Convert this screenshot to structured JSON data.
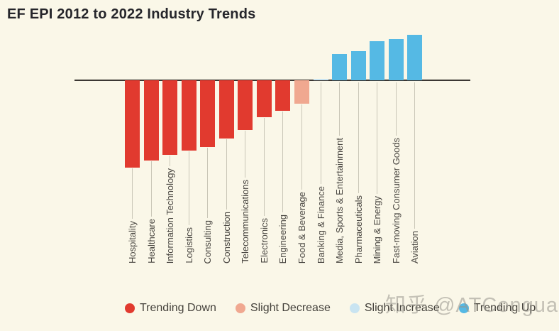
{
  "page": {
    "background_color": "#FAF7E8"
  },
  "chart_data": {
    "type": "bar",
    "title": "EF EPI 2012 to 2022 Industry Trends",
    "xlabel": "",
    "ylabel": "",
    "axis": {
      "numeric_axis_shown": false,
      "baseline": 0,
      "note": "No value labels or gridlines shown in source; values below are relative bar lengths estimated in pixels (negative = below baseline)."
    },
    "grid": false,
    "legend_position": "bottom",
    "categories": [
      "Hospitality",
      "Healthcare",
      "Information Technology",
      "Logistics",
      "Consulting",
      "Construction",
      "Telecommunications",
      "Electronics",
      "Engineering",
      "Food & Beverage",
      "Banking & Finance",
      "Media, Sports & Entertainment",
      "Pharmaceuticals",
      "Mining & Energy",
      "Fast-moving Consumer Goods",
      "Aviation"
    ],
    "values": [
      -123,
      -113,
      -105,
      -99,
      -94,
      -82,
      -70,
      -52,
      -43,
      -33,
      2,
      37,
      41,
      55,
      58,
      64
    ],
    "trends": [
      "trending_down",
      "trending_down",
      "trending_down",
      "trending_down",
      "trending_down",
      "trending_down",
      "trending_down",
      "trending_down",
      "trending_down",
      "slight_decrease",
      "slight_increase",
      "trending_up",
      "trending_up",
      "trending_up",
      "trending_up",
      "trending_up"
    ],
    "colors": {
      "trending_down": "#E13A2F",
      "slight_decrease": "#F0A890",
      "slight_increase": "#C9E4F1",
      "trending_up": "#55B9E4"
    },
    "legend": [
      {
        "label": "Trending Down",
        "color_key": "trending_down"
      },
      {
        "label": "Slight Decrease",
        "color_key": "slight_decrease"
      },
      {
        "label": "Slight Increase",
        "color_key": "slight_increase"
      },
      {
        "label": "Trending Up",
        "color_key": "trending_up"
      }
    ]
  },
  "watermark": {
    "text": "知乎 @ATConguard"
  }
}
